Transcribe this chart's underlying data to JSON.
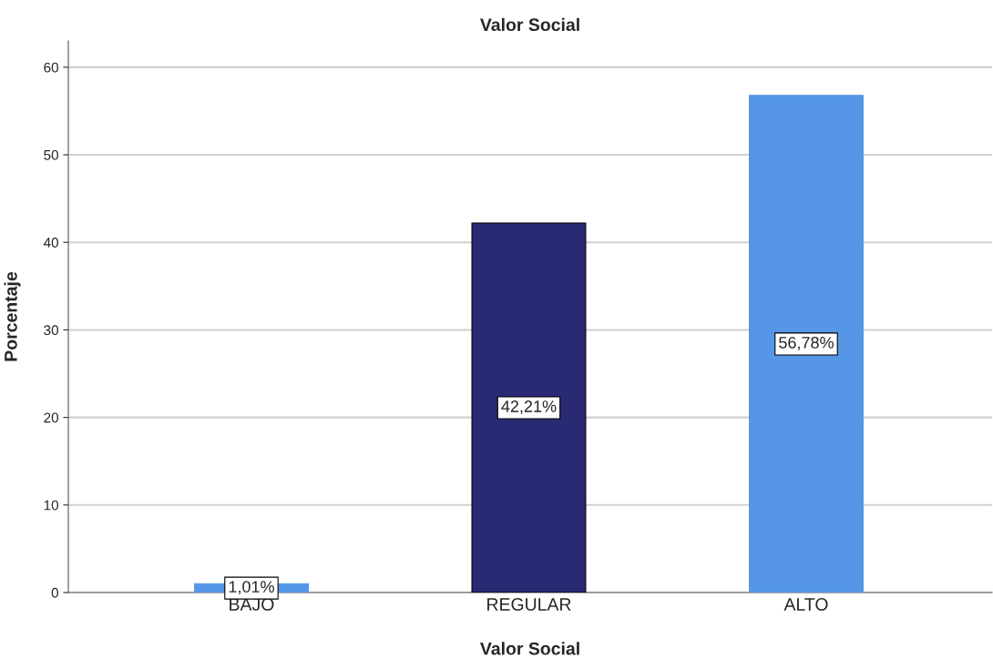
{
  "chart_data": {
    "type": "bar",
    "title": "Valor Social",
    "xlabel": "Valor Social",
    "ylabel": "Porcentaje",
    "categories": [
      "BAJO",
      "REGULAR",
      "ALTO"
    ],
    "values": [
      1.01,
      42.21,
      56.78
    ],
    "colors": [
      "#5596e6",
      "#292a73",
      "#5596e6"
    ],
    "value_labels": [
      "1,01%",
      "42,21%",
      "56,78%"
    ],
    "ylim": [
      0,
      63
    ],
    "yticks": [
      0,
      10,
      20,
      30,
      40,
      50,
      60
    ],
    "grid": "y"
  }
}
